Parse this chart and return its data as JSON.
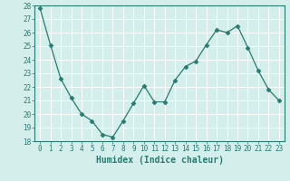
{
  "x": [
    0,
    1,
    2,
    3,
    4,
    5,
    6,
    7,
    8,
    9,
    10,
    11,
    12,
    13,
    14,
    15,
    16,
    17,
    18,
    19,
    20,
    21,
    22,
    23
  ],
  "y": [
    27.8,
    25.1,
    22.6,
    21.2,
    20.0,
    19.5,
    18.5,
    18.3,
    19.5,
    20.8,
    22.1,
    20.9,
    20.9,
    22.5,
    23.5,
    23.9,
    25.1,
    26.2,
    26.0,
    26.5,
    24.9,
    23.2,
    21.8,
    21.0
  ],
  "line_color": "#2a7a6f",
  "marker": "D",
  "marker_size": 2.5,
  "bg_color": "#d4eeec",
  "grid_color": "#ffffff",
  "xlabel": "Humidex (Indice chaleur)",
  "ylim": [
    18,
    28
  ],
  "yticks": [
    18,
    19,
    20,
    21,
    22,
    23,
    24,
    25,
    26,
    27,
    28
  ],
  "xticks": [
    0,
    1,
    2,
    3,
    4,
    5,
    6,
    7,
    8,
    9,
    10,
    11,
    12,
    13,
    14,
    15,
    16,
    17,
    18,
    19,
    20,
    21,
    22,
    23
  ],
  "tick_label_fontsize": 5.5,
  "xlabel_fontsize": 7,
  "tick_color": "#2a7a6f",
  "axis_color": "#2a7a6f"
}
